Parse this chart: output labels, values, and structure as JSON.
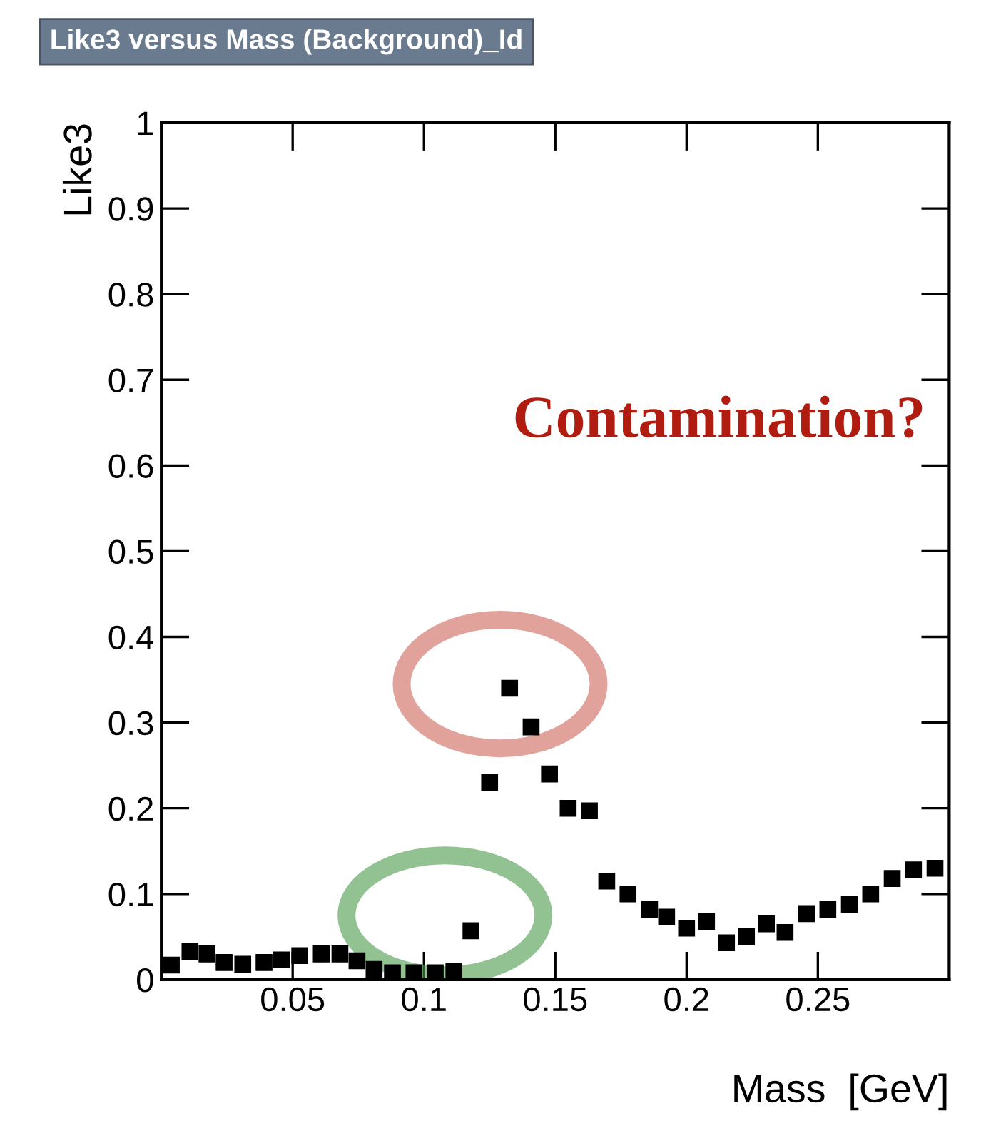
{
  "chart_data": {
    "type": "scatter",
    "title": "Like3 versus Mass (Background)_Id",
    "xlabel": "Mass  [GeV]",
    "ylabel": "Like3",
    "annotations": [
      "Contamination?"
    ],
    "x": [
      0.0038,
      0.0109,
      0.0174,
      0.0239,
      0.031,
      0.0391,
      0.0457,
      0.0527,
      0.0609,
      0.068,
      0.0745,
      0.081,
      0.088,
      0.0962,
      0.1043,
      0.1114,
      0.1179,
      0.125,
      0.1326,
      0.1408,
      0.1478,
      0.1549,
      0.163,
      0.1696,
      0.1777,
      0.1859,
      0.1924,
      0.2,
      0.2076,
      0.2152,
      0.2228,
      0.2304,
      0.2375,
      0.2457,
      0.2538,
      0.262,
      0.2701,
      0.2783,
      0.2864,
      0.2946
    ],
    "series": [
      {
        "color": "#000000",
        "values": [
          0.017,
          0.033,
          0.03,
          0.02,
          0.018,
          0.02,
          0.023,
          0.028,
          0.03,
          0.03,
          0.022,
          0.012,
          0.008,
          0.008,
          0.008,
          0.01,
          0.057,
          0.23,
          0.34,
          0.295,
          0.24,
          0.2,
          0.197,
          0.115,
          0.1,
          0.082,
          0.073,
          0.06,
          0.068,
          0.043,
          0.05,
          0.065,
          0.055,
          0.077,
          0.082,
          0.088,
          0.1,
          0.118,
          0.128,
          0.13
        ]
      }
    ],
    "marker": "square",
    "xlim": [
      0,
      0.3
    ],
    "ylim": [
      0,
      1
    ],
    "xticks": [
      0.05,
      0.1,
      0.15,
      0.2,
      0.25
    ],
    "yticks": [
      0,
      0.1,
      0.2,
      0.3,
      0.4,
      0.5,
      0.6,
      0.7,
      0.8,
      0.9,
      1
    ],
    "grid": false,
    "legend": false
  }
}
